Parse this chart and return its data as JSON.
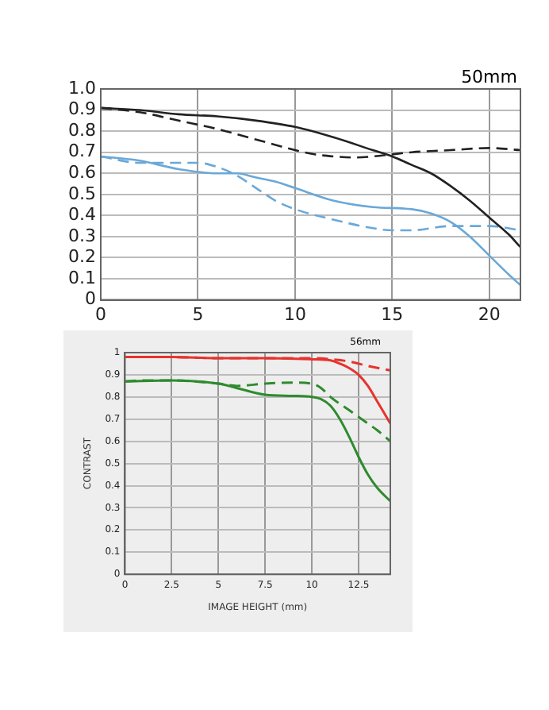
{
  "chart_data": [
    {
      "type": "line",
      "annotations": [
        "50mm"
      ],
      "xlim": [
        0,
        21.6
      ],
      "xticks": [
        0,
        5,
        10,
        15,
        20
      ],
      "ylim": [
        0,
        1
      ],
      "yticks": [
        0,
        {
          "value": 0.1,
          "label": "0.1"
        },
        {
          "value": 0.2,
          "label": "0.2"
        },
        {
          "value": 0.3,
          "label": "0.3"
        },
        {
          "value": 0.4,
          "label": "0.4"
        },
        {
          "value": 0.5,
          "label": "0.5"
        },
        {
          "value": 0.6,
          "label": "0.6"
        },
        {
          "value": 0.7,
          "label": "0.7"
        },
        {
          "value": 0.8,
          "label": "0.8"
        },
        {
          "value": 0.9,
          "label": "0.9"
        },
        {
          "value": 1,
          "label": "1.0"
        }
      ],
      "grid": true,
      "marker": "none",
      "series": [
        {
          "color": "#222222",
          "line_style": "solid",
          "x": [
            0,
            2,
            4,
            6,
            8,
            10,
            12,
            14,
            15,
            16,
            17,
            18,
            19,
            20,
            21,
            21.6
          ],
          "values": [
            0.91,
            0.9,
            0.88,
            0.87,
            0.85,
            0.82,
            0.77,
            0.71,
            0.68,
            0.64,
            0.6,
            0.54,
            0.47,
            0.39,
            0.31,
            0.25
          ]
        },
        {
          "color": "#222222",
          "line_style": "dashed",
          "x": [
            0,
            2,
            4,
            6,
            8,
            10,
            11,
            12,
            13,
            14,
            15,
            16,
            18,
            20,
            21.6
          ],
          "values": [
            0.91,
            0.89,
            0.85,
            0.81,
            0.76,
            0.71,
            0.69,
            0.68,
            0.675,
            0.68,
            0.69,
            0.7,
            0.71,
            0.72,
            0.71
          ]
        },
        {
          "color": "#6aa8d8",
          "line_style": "solid",
          "x": [
            0,
            2,
            4,
            6,
            7,
            8,
            9,
            10,
            12,
            14,
            16,
            17,
            18,
            19,
            20,
            21,
            21.6
          ],
          "values": [
            0.68,
            0.66,
            0.62,
            0.6,
            0.6,
            0.58,
            0.56,
            0.53,
            0.47,
            0.44,
            0.43,
            0.41,
            0.37,
            0.3,
            0.21,
            0.12,
            0.07
          ]
        },
        {
          "color": "#6aa8d8",
          "line_style": "dashed",
          "x": [
            0,
            2,
            4,
            5,
            6,
            7,
            8,
            9,
            10,
            12,
            14,
            15,
            16,
            18,
            20,
            21.6
          ],
          "values": [
            0.68,
            0.65,
            0.65,
            0.65,
            0.63,
            0.59,
            0.53,
            0.47,
            0.43,
            0.38,
            0.34,
            0.33,
            0.33,
            0.35,
            0.35,
            0.33
          ]
        }
      ]
    },
    {
      "type": "line",
      "annotations": [
        "56mm"
      ],
      "xlabel": "IMAGE HEIGHT (mm)",
      "ylabel": "CONTRAST",
      "xlim": [
        0,
        14.2
      ],
      "xticks": [
        0,
        2.5,
        5,
        7.5,
        10,
        12.5
      ],
      "ylim": [
        0,
        1
      ],
      "yticks": [
        0,
        0.1,
        0.2,
        0.3,
        0.4,
        0.5,
        0.6,
        0.7,
        0.8,
        0.9,
        1
      ],
      "grid": true,
      "marker": "none",
      "series": [
        {
          "color": "#e8322c",
          "line_style": "solid",
          "x": [
            0,
            2.5,
            5,
            7.5,
            10,
            11,
            11.5,
            12,
            12.5,
            13,
            13.5,
            14.2
          ],
          "values": [
            0.98,
            0.98,
            0.975,
            0.975,
            0.97,
            0.965,
            0.95,
            0.93,
            0.9,
            0.85,
            0.78,
            0.68
          ]
        },
        {
          "color": "#e8322c",
          "line_style": "dashed",
          "x": [
            0,
            2.5,
            5,
            7.5,
            10,
            11,
            12,
            13,
            14.2
          ],
          "values": [
            0.98,
            0.98,
            0.975,
            0.975,
            0.975,
            0.97,
            0.96,
            0.94,
            0.92
          ]
        },
        {
          "color": "#2e8b2e",
          "line_style": "solid",
          "x": [
            0,
            2.5,
            5,
            6,
            7.5,
            9,
            10,
            10.5,
            11,
            11.5,
            12,
            12.5,
            13,
            13.5,
            14.2
          ],
          "values": [
            0.87,
            0.875,
            0.86,
            0.84,
            0.81,
            0.805,
            0.8,
            0.79,
            0.76,
            0.7,
            0.62,
            0.53,
            0.45,
            0.39,
            0.33
          ]
        },
        {
          "color": "#2e8b2e",
          "line_style": "dashed",
          "x": [
            0,
            1,
            2.5,
            5,
            6,
            7.5,
            9,
            10,
            10.5,
            11,
            12,
            12.5,
            13,
            13.5,
            14.2
          ],
          "values": [
            0.87,
            0.875,
            0.875,
            0.86,
            0.85,
            0.86,
            0.865,
            0.86,
            0.84,
            0.8,
            0.74,
            0.71,
            0.68,
            0.65,
            0.6
          ]
        }
      ]
    }
  ]
}
